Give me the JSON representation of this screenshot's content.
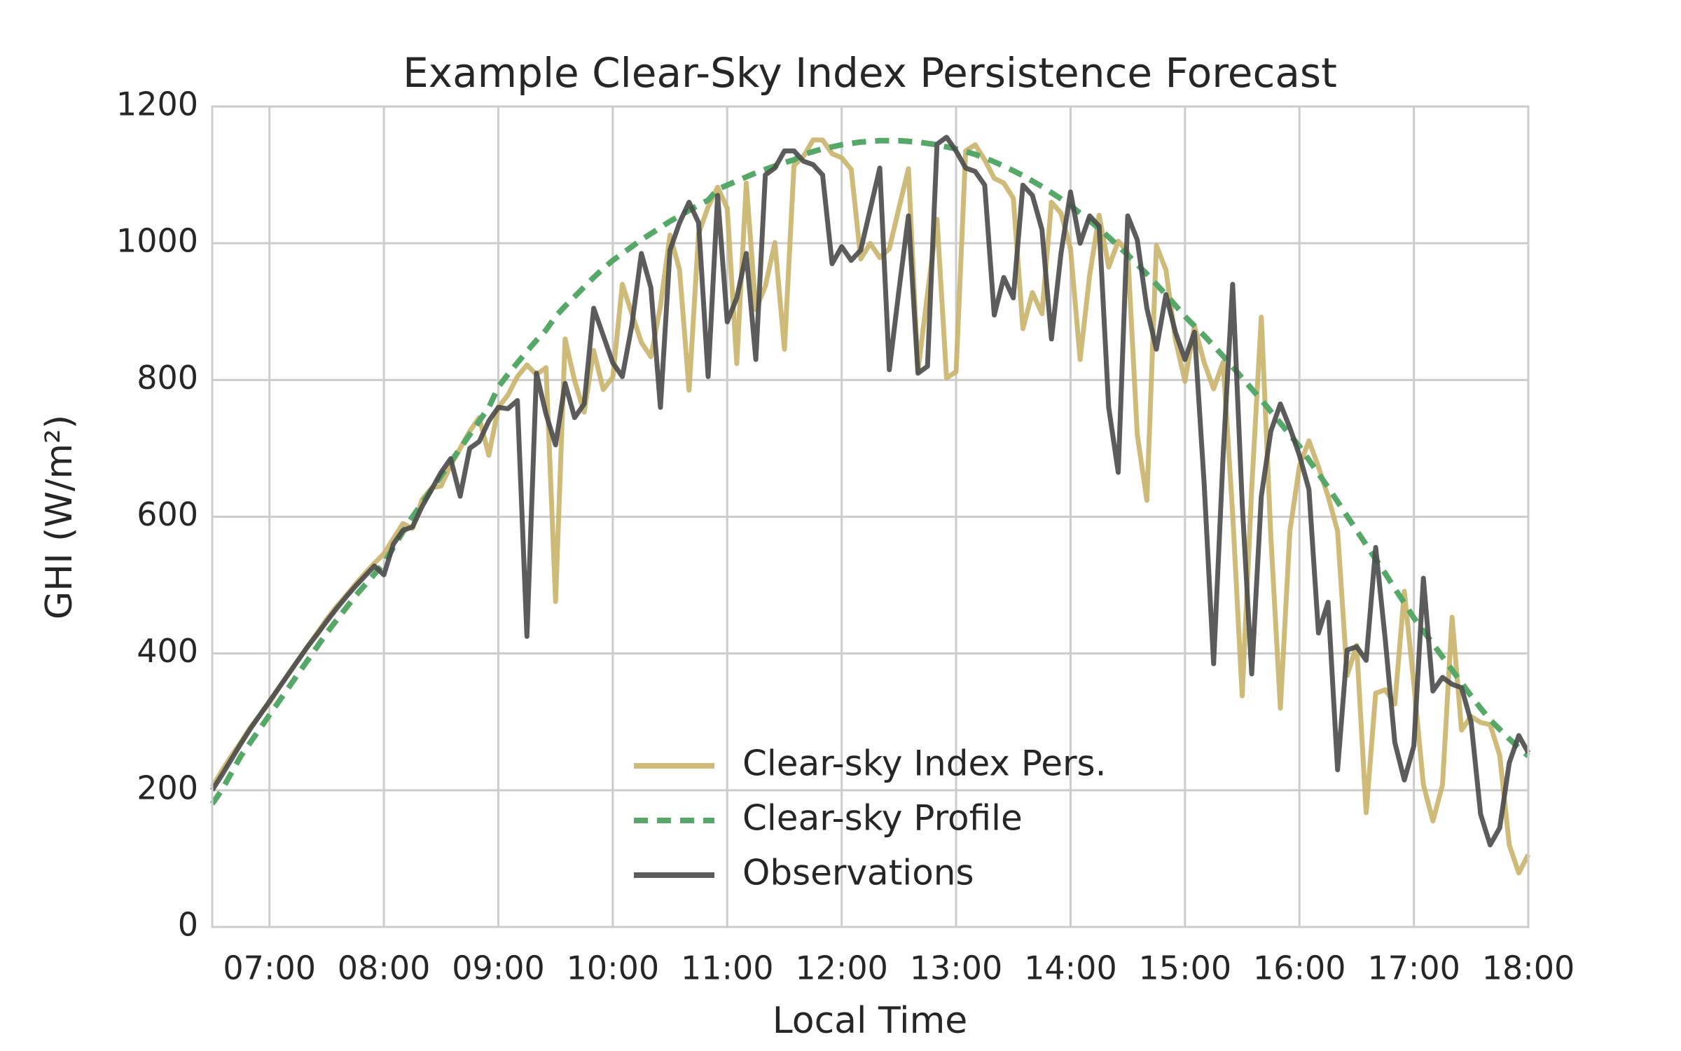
{
  "chart_data": {
    "type": "line",
    "title": "Example Clear-Sky Index Persistence Forecast",
    "x_label": "Local Time",
    "y_label": "GHI (W/m²)",
    "x": [
      "06:30",
      "06:35",
      "06:40",
      "06:45",
      "06:50",
      "06:55",
      "07:00",
      "07:05",
      "07:10",
      "07:15",
      "07:20",
      "07:25",
      "07:30",
      "07:35",
      "07:40",
      "07:45",
      "07:50",
      "07:55",
      "08:00",
      "08:05",
      "08:10",
      "08:15",
      "08:20",
      "08:25",
      "08:30",
      "08:35",
      "08:40",
      "08:45",
      "08:50",
      "08:55",
      "09:00",
      "09:05",
      "09:10",
      "09:15",
      "09:20",
      "09:25",
      "09:30",
      "09:35",
      "09:40",
      "09:45",
      "09:50",
      "09:55",
      "10:00",
      "10:05",
      "10:10",
      "10:15",
      "10:20",
      "10:25",
      "10:30",
      "10:35",
      "10:40",
      "10:45",
      "10:50",
      "10:55",
      "11:00",
      "11:05",
      "11:10",
      "11:15",
      "11:20",
      "11:25",
      "11:30",
      "11:35",
      "11:40",
      "11:45",
      "11:50",
      "11:55",
      "12:00",
      "12:05",
      "12:10",
      "12:15",
      "12:20",
      "12:25",
      "12:30",
      "12:35",
      "12:40",
      "12:45",
      "12:50",
      "12:55",
      "13:00",
      "13:05",
      "13:10",
      "13:15",
      "13:20",
      "13:25",
      "13:30",
      "13:35",
      "13:40",
      "13:45",
      "13:50",
      "13:55",
      "14:00",
      "14:05",
      "14:10",
      "14:15",
      "14:20",
      "14:25",
      "14:30",
      "14:35",
      "14:40",
      "14:45",
      "14:50",
      "14:55",
      "15:00",
      "15:05",
      "15:10",
      "15:15",
      "15:20",
      "15:25",
      "15:30",
      "15:35",
      "15:40",
      "15:45",
      "15:50",
      "15:55",
      "16:00",
      "16:05",
      "16:10",
      "16:15",
      "16:20",
      "16:25",
      "16:30",
      "16:35",
      "16:40",
      "16:45",
      "16:50",
      "16:55",
      "17:00",
      "17:05",
      "17:10",
      "17:15",
      "17:20",
      "17:25",
      "17:30",
      "17:35",
      "17:40",
      "17:45",
      "17:50",
      "17:55",
      "18:00"
    ],
    "series": [
      {
        "name": "Clear-sky Index Pers.",
        "color": "#c9b36a",
        "dash": false,
        "values": [
          205,
          228,
          250,
          270,
          292,
          310,
          328,
          350,
          370,
          390,
          410,
          430,
          450,
          468,
          484,
          501,
          517,
          532,
          546,
          568,
          590,
          583,
          625,
          642,
          645,
          675,
          700,
          725,
          745,
          690,
          760,
          778,
          805,
          822,
          808,
          818,
          476,
          860,
          799,
          753,
          843,
          786,
          804,
          940,
          897,
          855,
          834,
          908,
          1012,
          961,
          785,
          1014,
          1053,
          1082,
          1051,
          824,
          1088,
          903,
          937,
          1001,
          845,
          1114,
          1127,
          1151,
          1151,
          1131,
          1125,
          1108,
          977,
          1000,
          979,
          992,
          1051,
          1109,
          813,
          926,
          1035,
          803,
          812,
          1135,
          1144,
          1122,
          1095,
          1088,
          1066,
          875,
          928,
          897,
          1060,
          1044,
          992,
          830,
          953,
          1041,
          965,
          1003,
          987,
          720,
          624,
          997,
          961,
          859,
          798,
          879,
          826,
          787,
          826,
          604,
          338,
          642,
          892,
          571,
          320,
          579,
          674,
          711,
          673,
          630,
          579,
          368,
          412,
          167,
          342,
          347,
          326,
          491,
          355,
          208,
          155,
          208,
          453,
          288,
          308,
          299,
          296,
          251,
          120,
          79,
          106
        ]
      },
      {
        "name": "Clear-sky Profile",
        "color": "#55a868",
        "dash": true,
        "values": [
          180,
          200,
          225,
          250,
          270,
          290,
          310,
          330,
          350,
          370,
          390,
          410,
          430,
          448,
          466,
          484,
          500,
          516,
          532,
          555,
          578,
          600,
          620,
          640,
          660,
          680,
          700,
          720,
          740,
          760,
          790,
          808,
          825,
          842,
          858,
          873,
          893,
          908,
          922,
          936,
          950,
          963,
          975,
          985,
          995,
          1005,
          1014,
          1023,
          1032,
          1040,
          1048,
          1056,
          1063,
          1079,
          1085,
          1091,
          1097,
          1103,
          1108,
          1113,
          1118,
          1122,
          1130,
          1134,
          1138,
          1141,
          1144,
          1146,
          1148,
          1149,
          1150,
          1150,
          1150,
          1149,
          1148,
          1146,
          1144,
          1141,
          1138,
          1134,
          1130,
          1125,
          1119,
          1113,
          1106,
          1099,
          1091,
          1083,
          1074,
          1065,
          1055,
          1044,
          1033,
          1021,
          1009,
          996,
          983,
          969,
          955,
          940,
          925,
          909,
          893,
          879,
          865,
          850,
          835,
          819,
          803,
          787,
          771,
          754,
          737,
          720,
          703,
          683,
          663,
          643,
          622,
          601,
          580,
          559,
          538,
          517,
          495,
          474,
          452,
          433,
          414,
          395,
          376,
          357,
          338,
          320,
          303,
          289,
          275,
          262,
          250
        ]
      },
      {
        "name": "Observations",
        "color": "#4a4a4a",
        "dash": false,
        "values": [
          200,
          222,
          245,
          268,
          290,
          310,
          330,
          350,
          370,
          390,
          410,
          428,
          447,
          465,
          482,
          498,
          513,
          528,
          515,
          560,
          580,
          585,
          615,
          640,
          665,
          685,
          630,
          700,
          710,
          740,
          760,
          758,
          770,
          425,
          810,
          750,
          705,
          795,
          745,
          765,
          905,
          865,
          825,
          805,
          880,
          985,
          935,
          760,
          990,
          1030,
          1060,
          1030,
          805,
          1070,
          885,
          920,
          985,
          830,
          1100,
          1110,
          1135,
          1135,
          1120,
          1115,
          1100,
          970,
          995,
          975,
          990,
          1050,
          1110,
          815,
          930,
          1040,
          810,
          820,
          1145,
          1155,
          1135,
          1110,
          1105,
          1085,
          895,
          950,
          920,
          1085,
          1070,
          1020,
          860,
          985,
          1075,
          1000,
          1040,
          1025,
          760,
          665,
          1040,
          1005,
          905,
          845,
          925,
          870,
          830,
          870,
          650,
          385,
          690,
          940,
          620,
          370,
          630,
          725,
          765,
          730,
          690,
          640,
          430,
          475,
          230,
          405,
          410,
          390,
          555,
          420,
          270,
          215,
          265,
          510,
          345,
          365,
          355,
          350,
          300,
          165,
          120,
          145,
          240,
          280,
          255
        ]
      }
    ],
    "xlim": [
      "06:30",
      "18:00"
    ],
    "xticks": [
      "07:00",
      "08:00",
      "09:00",
      "10:00",
      "11:00",
      "12:00",
      "13:00",
      "14:00",
      "15:00",
      "16:00",
      "17:00",
      "18:00"
    ],
    "ylim": [
      0,
      1200
    ],
    "yticks": [
      0,
      200,
      400,
      600,
      800,
      1000,
      1200
    ],
    "grid": true,
    "legend": "lower center"
  }
}
